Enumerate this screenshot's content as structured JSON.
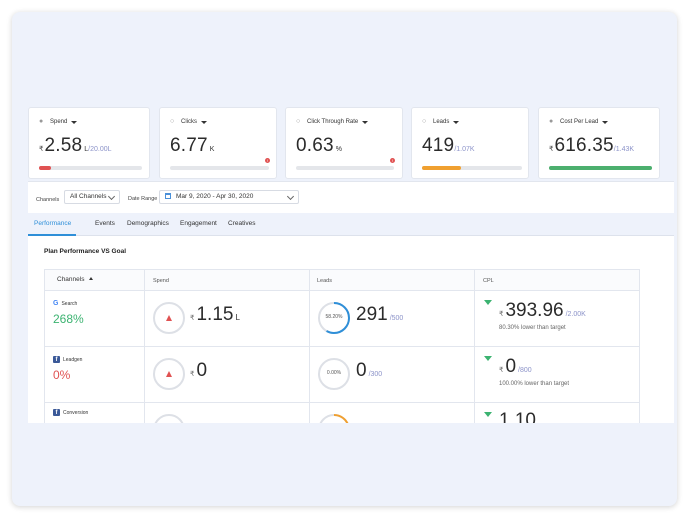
{
  "kpis": [
    {
      "label": "Spend",
      "currency": "₹",
      "value": "2.58",
      "unit": "L",
      "target": "/20.00L",
      "bar_pct": 12,
      "bar_color": "#e05252",
      "alert": false
    },
    {
      "label": "Clicks",
      "currency": "",
      "value": "6.77",
      "unit": "K",
      "target": "",
      "bar_pct": 0,
      "bar_color": "#e05252",
      "alert": true
    },
    {
      "label": "Click Through Rate",
      "currency": "",
      "value": "0.63",
      "unit": "%",
      "target": "",
      "bar_pct": 0,
      "bar_color": "#e05252",
      "alert": true
    },
    {
      "label": "Leads",
      "currency": "",
      "value": "419",
      "unit": "",
      "target": "/1.07K",
      "bar_pct": 39,
      "bar_color": "#f0a030",
      "alert": false
    },
    {
      "label": "Cost Per Lead",
      "currency": "₹",
      "value": "616.35",
      "unit": "",
      "target": "/1.43K",
      "bar_pct": 100,
      "bar_color": "#4caf6e",
      "alert": false
    }
  ],
  "filters": {
    "channels_label": "Channels",
    "channels_value": "All Channels",
    "date_label": "Date Range",
    "date_value": "Mar 9, 2020 - Apr 30, 2020"
  },
  "tabs": [
    "Performance",
    "Events",
    "Demographics",
    "Engagement",
    "Creatives"
  ],
  "active_tab": "Performance",
  "section_title": "Plan Performance VS Goal",
  "table": {
    "headers": {
      "channels": "Channels",
      "spend": "Spend",
      "leads": "Leads",
      "cpl": "CPL"
    },
    "rows": [
      {
        "channel": "Search",
        "channel_icon": "google-icon",
        "pct": "268%",
        "pct_color": "#3cb371",
        "spend_currency": "₹",
        "spend_value": "1.15",
        "spend_unit": "L",
        "leads_ring": "58.20%",
        "leads_ring_pct": 58.2,
        "leads_value": "291",
        "leads_target": "/500",
        "cpl_currency": "₹",
        "cpl_value": "393.96",
        "cpl_target": "/2.00K",
        "cpl_note": "80.30% lower than target"
      },
      {
        "channel": "Leadgen",
        "channel_icon": "facebook-icon",
        "pct": "0%",
        "pct_color": "#e05252",
        "spend_currency": "₹",
        "spend_value": "0",
        "spend_unit": "",
        "leads_ring": "0.00%",
        "leads_ring_pct": 0,
        "leads_value": "0",
        "leads_target": "/300",
        "cpl_currency": "₹",
        "cpl_value": "0",
        "cpl_target": "/800",
        "cpl_note": "100.00% lower than target"
      },
      {
        "channel": "Conversion",
        "channel_icon": "facebook-icon",
        "pct": "",
        "pct_color": "#333333",
        "spend_currency": "",
        "spend_value": "",
        "spend_unit": "",
        "leads_ring": "",
        "leads_ring_pct": 20,
        "leads_value": "",
        "leads_target": "",
        "cpl_currency": "",
        "cpl_value": "1.10",
        "cpl_target": "",
        "cpl_note": ""
      }
    ]
  }
}
